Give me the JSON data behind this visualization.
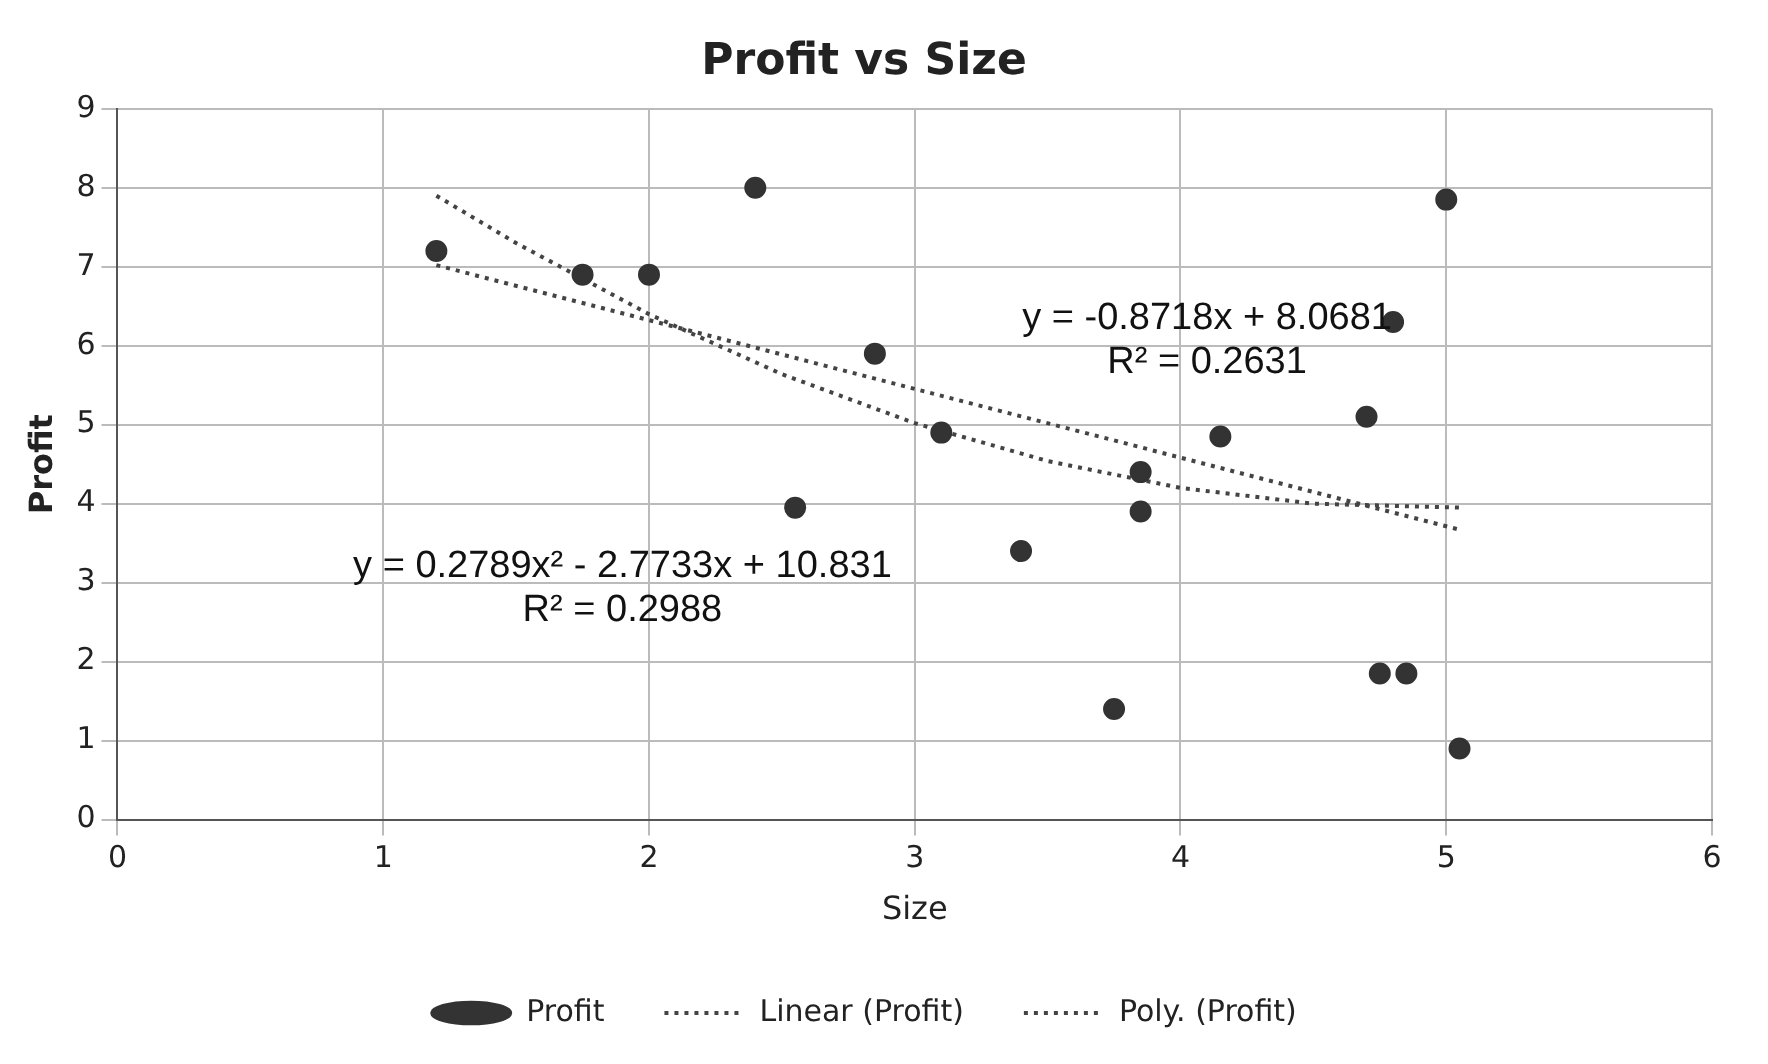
{
  "chart_data": {
    "type": "scatter",
    "title": "Profit vs Size",
    "xlabel": "Size",
    "ylabel": "Profit",
    "xlim": [
      0,
      6
    ],
    "xticks": [
      0,
      1,
      2,
      3,
      4,
      5,
      6
    ],
    "ylim": [
      0,
      9
    ],
    "yticks": [
      0,
      1,
      2,
      3,
      4,
      5,
      6,
      7,
      8,
      9
    ],
    "grid": true,
    "legend": "bottom",
    "marker": "circle",
    "series": [
      {
        "name": "Profit",
        "type": "scatter",
        "color": "#333333",
        "x": [
          1.2,
          1.75,
          2.0,
          2.4,
          2.55,
          2.85,
          3.1,
          3.4,
          3.75,
          3.85,
          3.85,
          4.15,
          4.7,
          4.8,
          5.0,
          4.75,
          4.85,
          5.05
        ],
        "values": [
          7.2,
          6.9,
          6.9,
          8.0,
          3.95,
          5.9,
          4.9,
          3.4,
          1.4,
          4.4,
          3.9,
          4.85,
          5.1,
          6.3,
          7.85,
          1.85,
          1.85,
          0.9
        ]
      },
      {
        "name": "Linear (Profit)",
        "type": "line",
        "line_style": "dotted",
        "marker": "none",
        "color": "#444444",
        "x": [
          1.2,
          5.05
        ],
        "values": [
          7.02,
          3.67
        ]
      },
      {
        "name": "Poly. (Profit)",
        "type": "line",
        "line_style": "dotted",
        "marker": "none",
        "color": "#444444",
        "x": [
          1.2,
          1.5,
          2,
          2.5,
          3,
          3.5,
          4,
          4.5,
          5.05
        ],
        "values": [
          7.9,
          7.3,
          6.4,
          5.64,
          5.02,
          4.54,
          4.2,
          4.0,
          3.95
        ]
      }
    ],
    "annotations": [
      "y = -0.8718x + 8.0681\nR² = 0.2631",
      "y = 0.2789x² - 2.7733x + 10.831\nR² = 0.2988"
    ]
  }
}
